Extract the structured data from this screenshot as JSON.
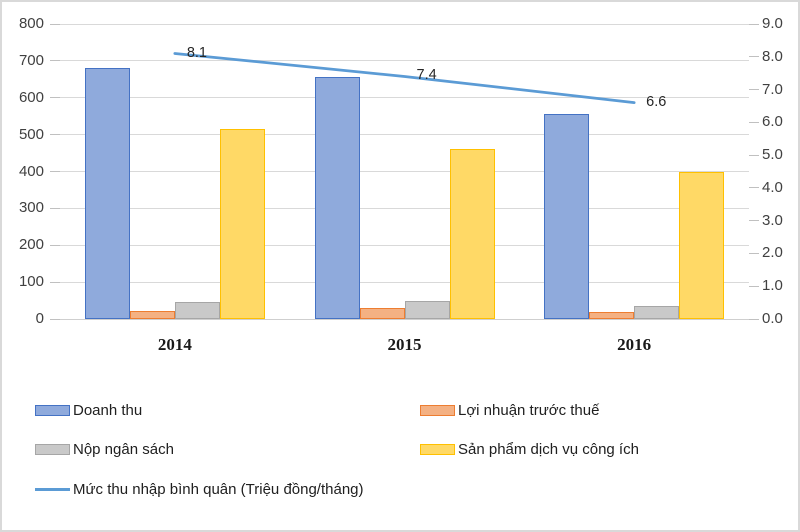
{
  "chart_data": {
    "type": "combo",
    "title": "",
    "categories": [
      "2014",
      "2015",
      "2016"
    ],
    "series": [
      {
        "name": "Doanh thu",
        "chart_type": "bar",
        "axis": "left",
        "values": [
          680,
          655,
          555
        ],
        "fill": "#8FAADC",
        "border": "#4472C4"
      },
      {
        "name": "Lợi nhuận trước thuế",
        "chart_type": "bar",
        "axis": "left",
        "values": [
          22,
          30,
          18
        ],
        "fill": "#F4B183",
        "border": "#ED7D31"
      },
      {
        "name": "Nộp ngân sách",
        "chart_type": "bar",
        "axis": "left",
        "values": [
          45,
          48,
          35
        ],
        "fill": "#C9C9C9",
        "border": "#A6A6A6"
      },
      {
        "name": "Sản phẩm dịch vụ công ích",
        "chart_type": "bar",
        "axis": "left",
        "values": [
          515,
          460,
          400
        ],
        "fill": "#FFD966",
        "border": "#FFC000"
      },
      {
        "name": "Mức thu nhập bình quân (Triệu đồng/tháng)",
        "chart_type": "line",
        "axis": "right",
        "values": [
          8.1,
          7.4,
          6.6
        ],
        "color": "#5B9BD5",
        "data_labels": [
          "8.1",
          "7.4",
          "6.6"
        ]
      }
    ],
    "left_axis": {
      "min": 0,
      "max": 800,
      "tick_labels": [
        "0",
        "100",
        "200",
        "300",
        "400",
        "500",
        "600",
        "700",
        "800"
      ]
    },
    "right_axis": {
      "min": 0,
      "max": 9,
      "tick_labels": [
        "0.0",
        "1.0",
        "2.0",
        "3.0",
        "4.0",
        "5.0",
        "6.0",
        "7.0",
        "8.0",
        "9.0"
      ]
    },
    "grid": true,
    "legend_position": "bottom",
    "colors": {
      "gridline": "#D9D9D9",
      "baseline": "#CFCFCF",
      "tick": "#C0C0C0",
      "axis_text": "#404040",
      "data_label_text": "#262626",
      "frame_border": "#D9D9D9"
    }
  }
}
